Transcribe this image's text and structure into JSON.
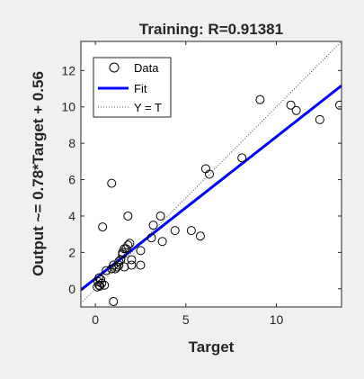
{
  "chart_data": {
    "type": "scatter",
    "title": "Training: R=0.91381",
    "xlabel": "Target",
    "ylabel": "Output ~= 0.78*Target + 0.56",
    "xlim": [
      -0.8,
      13.6
    ],
    "ylim": [
      -1.0,
      13.6
    ],
    "xticks": [
      0,
      5,
      10
    ],
    "yticks": [
      0,
      2,
      4,
      6,
      8,
      10,
      12
    ],
    "grid": false,
    "legend_position": "top-left",
    "fit": {
      "slope": 0.78,
      "intercept": 0.56
    },
    "series": [
      {
        "name": "Data",
        "marker": "open-circle",
        "color": "#000000",
        "x": [
          0.1,
          0.2,
          0.15,
          0.25,
          0.3,
          0.2,
          0.35,
          0.5,
          0.4,
          0.6,
          0.9,
          1.0,
          1.1,
          1.2,
          1.3,
          1.4,
          1.5,
          1.5,
          1.6,
          1.7,
          1.8,
          1.9,
          2.0,
          2.0,
          1.6,
          1.3,
          1.0,
          0.9,
          1.8,
          2.5,
          2.5,
          3.1,
          3.2,
          3.6,
          3.7,
          4.4,
          5.3,
          5.8,
          6.1,
          6.3,
          8.1,
          9.1,
          10.8,
          11.1,
          12.4,
          13.5
        ],
        "y": [
          0.1,
          0.2,
          0.4,
          0.15,
          0.5,
          0.6,
          0.3,
          0.2,
          3.4,
          1.0,
          5.8,
          1.3,
          1.1,
          1.2,
          1.5,
          1.6,
          1.9,
          2.0,
          2.2,
          2.2,
          2.4,
          2.5,
          1.3,
          1.6,
          1.2,
          1.3,
          -0.7,
          1.1,
          4.0,
          1.3,
          2.1,
          2.8,
          3.5,
          4.0,
          2.6,
          3.2,
          3.2,
          2.9,
          6.6,
          6.3,
          7.2,
          10.4,
          10.1,
          9.8,
          9.3,
          10.1
        ]
      },
      {
        "name": "Fit",
        "color": "#0000ff",
        "style": "solid"
      },
      {
        "name": "Y = T",
        "color": "#555555",
        "style": "dotted"
      }
    ]
  }
}
